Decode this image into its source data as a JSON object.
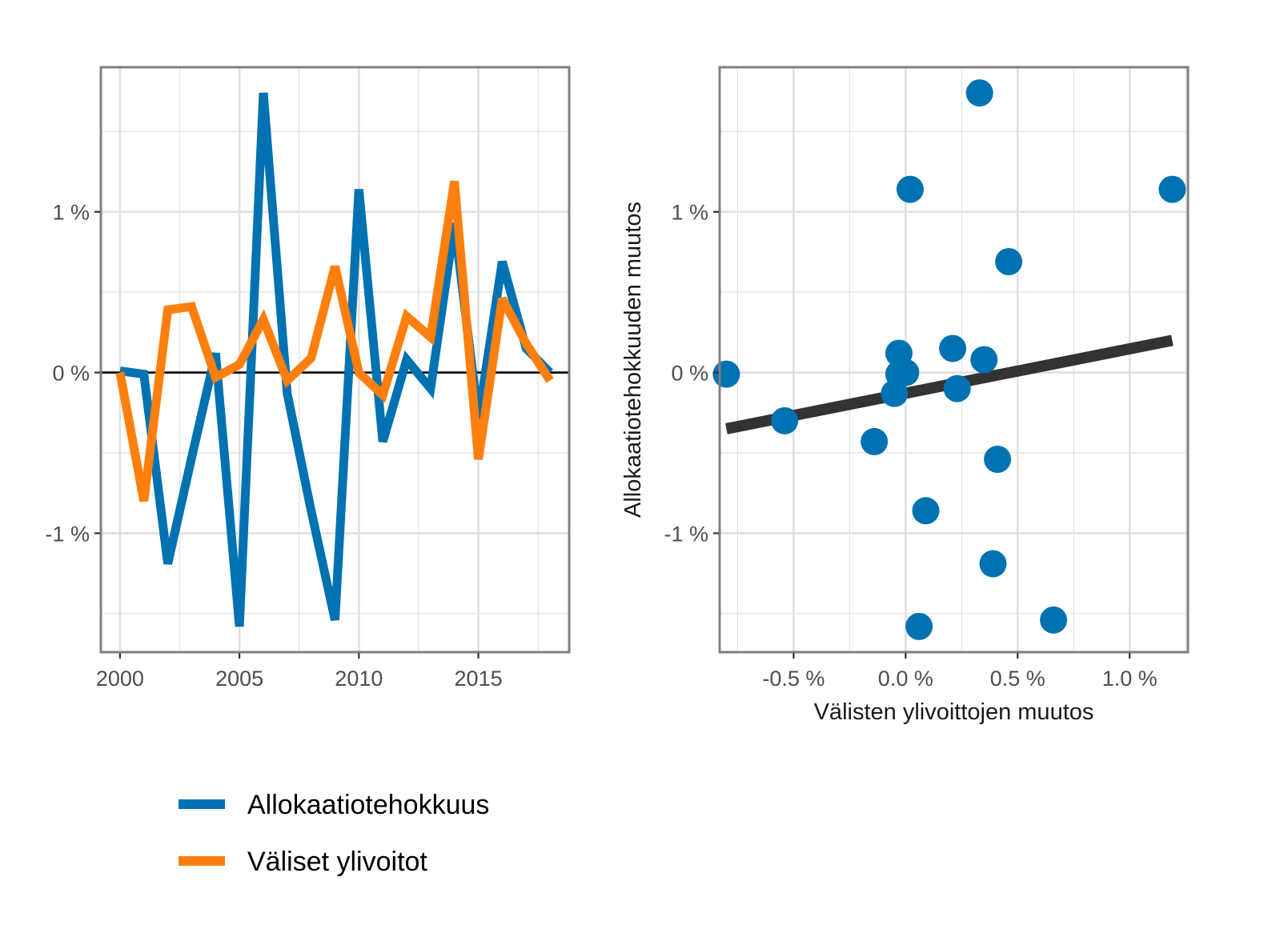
{
  "colors": {
    "allokaatio": "#0072B2",
    "valiset": "#FF7F0E",
    "fit": "#333333",
    "grid": "#e0e0e0",
    "frame": "#7f7f7f",
    "zero": "#000000"
  },
  "legend": {
    "position": "bottom-left",
    "items": [
      {
        "label": "Allokaatiotehokkuus",
        "color": "#0072B2"
      },
      {
        "label": "Väliset ylivoitot",
        "color": "#FF7F0E"
      }
    ]
  },
  "chart_data": [
    {
      "type": "line",
      "xlabel": "",
      "ylabel": "",
      "x": [
        2000,
        2001,
        2002,
        2003,
        2004,
        2005,
        2006,
        2007,
        2008,
        2009,
        2010,
        2011,
        2012,
        2013,
        2014,
        2015,
        2016,
        2017,
        2018
      ],
      "xlim": [
        1999.2,
        2018.8
      ],
      "ylim": [
        -1.74,
        1.9
      ],
      "xticks": [
        2000,
        2005,
        2010,
        2015
      ],
      "xtick_labels": [
        "2000",
        "2005",
        "2010",
        "2015"
      ],
      "yticks": [
        -1,
        0,
        1
      ],
      "ytick_labels": [
        "-1 %",
        "0 %",
        "1 %"
      ],
      "grid": true,
      "zero_line": true,
      "series": [
        {
          "name": "Allokaatiotehokkuus",
          "color": "#0072B2",
          "values": [
            0.01,
            -0.01,
            -1.19,
            -0.53,
            0.12,
            -1.58,
            1.74,
            -0.13,
            -0.86,
            -1.54,
            1.14,
            -0.43,
            0.08,
            -0.1,
            0.93,
            -0.29,
            0.69,
            0.15,
            0.0
          ]
        },
        {
          "name": "Väliset ylivoitot",
          "color": "#FF7F0E",
          "values": [
            0.0,
            -0.8,
            0.39,
            0.41,
            -0.03,
            0.05,
            0.33,
            -0.05,
            0.09,
            0.66,
            0.0,
            -0.14,
            0.35,
            0.22,
            1.19,
            -0.54,
            0.46,
            0.18,
            -0.05
          ]
        }
      ]
    },
    {
      "type": "scatter",
      "xlabel": "Välisten ylivoittojen muutos",
      "ylabel": "Allokaatiotehokkuuden muutos",
      "xlim": [
        -0.83,
        1.26
      ],
      "ylim": [
        -1.74,
        1.9
      ],
      "xticks": [
        -0.5,
        0.0,
        0.5,
        1.0
      ],
      "xtick_labels": [
        "-0.5 %",
        "0.0 %",
        "0.5 %",
        "1.0 %"
      ],
      "yticks": [
        -1,
        0,
        1
      ],
      "ytick_labels": [
        "-1 %",
        "0 %",
        "1 %"
      ],
      "grid": true,
      "color": "#0072B2",
      "points": [
        {
          "x": -0.8,
          "y": -0.01
        },
        {
          "x": -0.54,
          "y": -0.3
        },
        {
          "x": -0.14,
          "y": -0.43
        },
        {
          "x": -0.03,
          "y": 0.12
        },
        {
          "x": -0.05,
          "y": -0.13
        },
        {
          "x": -0.03,
          "y": -0.01
        },
        {
          "x": 0.0,
          "y": 0.0
        },
        {
          "x": 0.02,
          "y": 1.14
        },
        {
          "x": 0.06,
          "y": -1.58
        },
        {
          "x": 0.09,
          "y": -0.86
        },
        {
          "x": 0.21,
          "y": 0.15
        },
        {
          "x": 0.23,
          "y": -0.1
        },
        {
          "x": 0.33,
          "y": 1.74
        },
        {
          "x": 0.35,
          "y": 0.08
        },
        {
          "x": 0.39,
          "y": -1.19
        },
        {
          "x": 0.41,
          "y": -0.54
        },
        {
          "x": 0.46,
          "y": 0.69
        },
        {
          "x": 0.66,
          "y": -1.54
        },
        {
          "x": 1.19,
          "y": 1.14
        }
      ],
      "fit_line": {
        "x": [
          -0.8,
          1.19
        ],
        "y": [
          -0.35,
          0.2
        ]
      }
    }
  ]
}
